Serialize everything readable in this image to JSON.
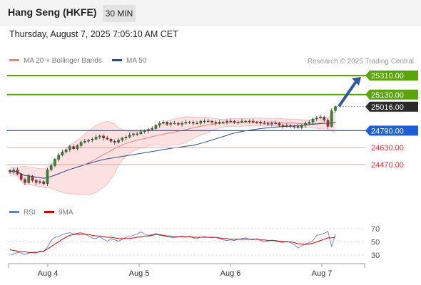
{
  "header": {
    "title": "Hang Seng (HKFE)",
    "timeframe": "30 MIN"
  },
  "datetime": "Thursday, August 7, 2025 7:05:10 AM CET",
  "legend": {
    "ma20": "MA 20 + Bollinger Bands",
    "ma50": "MA 50",
    "ma20_color": "#f08080",
    "ma50_color": "#2a4f8a"
  },
  "source": "Research © 2025 Trading Central",
  "rsi_legend": {
    "rsi": "RSI",
    "ma9": "9MA",
    "rsi_color": "#5b7fd6",
    "ma9_color": "#d40000"
  },
  "chart_data": {
    "type": "candlestick",
    "price_min": 24000,
    "price_max": 25400,
    "x_ticks": [
      "Aug 4",
      "Aug 5",
      "Aug 6",
      "Aug 7"
    ],
    "last_price": 25016,
    "levels": [
      {
        "label": "25310.00",
        "value": 25310,
        "kind": "target",
        "color": "#5aa50a"
      },
      {
        "label": "25130.00",
        "value": 25130,
        "kind": "resistance",
        "color": "#5aa50a"
      },
      {
        "label": "25016.00",
        "value": 25016,
        "kind": "last",
        "color": "#222222"
      },
      {
        "label": "24790.00",
        "value": 24790,
        "kind": "pivot",
        "color": "#1e5fd6"
      },
      {
        "label": "24630.00",
        "value": 24630,
        "kind": "support",
        "color": "#e8303a"
      },
      {
        "label": "24470.00",
        "value": 24470,
        "kind": "support",
        "color": "#e8303a"
      }
    ],
    "closes": [
      24400,
      24420,
      24380,
      24330,
      24300,
      24360,
      24320,
      24300,
      24310,
      24290,
      24420,
      24460,
      24520,
      24560,
      24590,
      24610,
      24640,
      24620,
      24650,
      24680,
      24690,
      24700,
      24710,
      24730,
      24740,
      24720,
      24710,
      24690,
      24680,
      24700,
      24720,
      24730,
      24750,
      24760,
      24760,
      24780,
      24790,
      24800,
      24810,
      24840,
      24860,
      24870,
      24850,
      24860,
      24860,
      24850,
      24860,
      24870,
      24870,
      24860,
      24860,
      24880,
      24880,
      24880,
      24870,
      24860,
      24870,
      24870,
      24880,
      24880,
      24870,
      24870,
      24880,
      24880,
      24880,
      24870,
      24870,
      24860,
      24860,
      24850,
      24860,
      24860,
      24840,
      24830,
      24840,
      24830,
      24830,
      24820,
      24840,
      24860,
      24870,
      24900,
      24910,
      24920,
      24890,
      24830,
      24980,
      25016
    ],
    "rsi_ticks": [
      70,
      50,
      30
    ],
    "rsi": [
      30,
      32,
      34,
      33,
      31,
      33,
      34,
      33,
      36,
      35,
      42,
      52,
      57,
      58,
      61,
      63,
      64,
      62,
      63,
      64,
      62,
      59,
      56,
      55,
      58,
      54,
      51,
      55,
      53,
      51,
      54,
      57,
      58,
      60,
      62,
      65,
      62,
      60,
      61,
      63,
      60,
      59,
      58,
      57,
      56,
      58,
      59,
      57,
      59,
      56,
      55,
      57,
      58,
      57,
      56,
      57,
      55,
      53,
      52,
      53,
      52,
      54,
      55,
      56,
      54,
      53,
      55,
      52,
      50,
      51,
      53,
      51,
      50,
      49,
      51,
      49,
      46,
      41,
      44,
      47,
      49,
      52,
      60,
      61,
      63,
      66,
      43,
      62
    ],
    "rsi_ma9": [
      38,
      37,
      36,
      35,
      35,
      34,
      34,
      34,
      35,
      36,
      39,
      43,
      47,
      50,
      54,
      57,
      60,
      61,
      62,
      62,
      62,
      61,
      60,
      59,
      59,
      58,
      57,
      57,
      56,
      55,
      55,
      55,
      55,
      56,
      57,
      58,
      59,
      59,
      60,
      61,
      61,
      60,
      59,
      59,
      58,
      58,
      58,
      58,
      58,
      57,
      57,
      57,
      57,
      57,
      57,
      57,
      56,
      55,
      55,
      54,
      54,
      54,
      54,
      54,
      54,
      54,
      54,
      53,
      53,
      52,
      52,
      52,
      51,
      51,
      50,
      50,
      49,
      47,
      47,
      46,
      47,
      48,
      50,
      52,
      54,
      56,
      56,
      57
    ]
  }
}
